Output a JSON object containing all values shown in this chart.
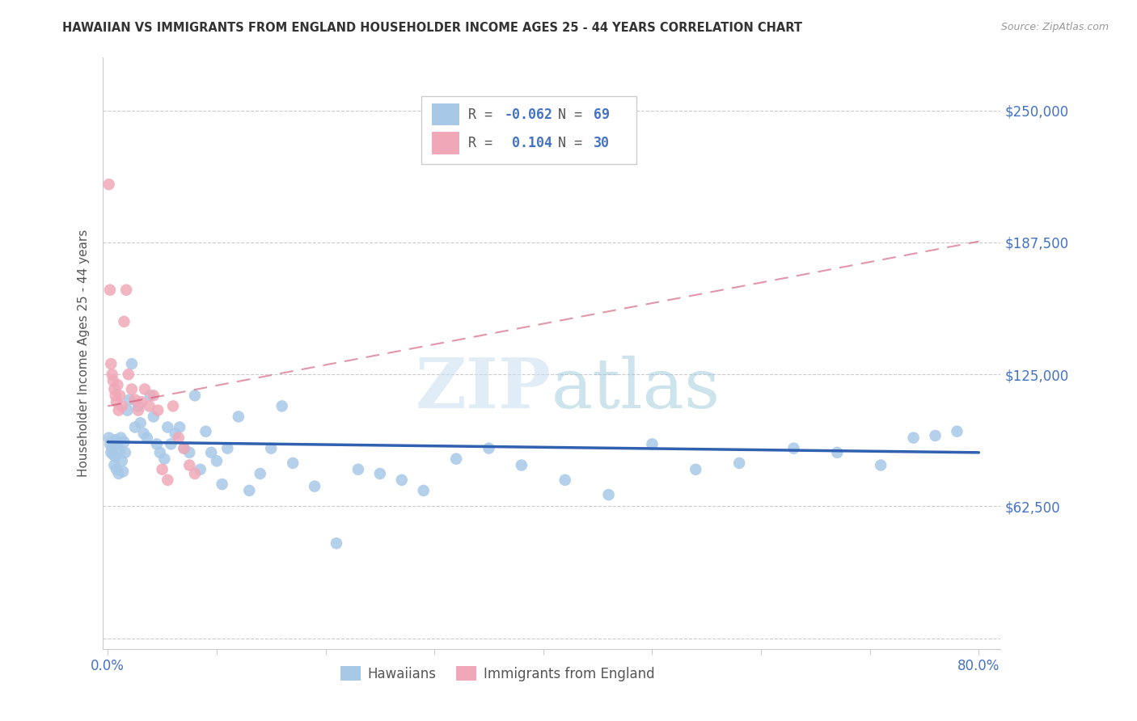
{
  "title": "HAWAIIAN VS IMMIGRANTS FROM ENGLAND HOUSEHOLDER INCOME AGES 25 - 44 YEARS CORRELATION CHART",
  "source": "Source: ZipAtlas.com",
  "ylabel": "Householder Income Ages 25 - 44 years",
  "ytick_vals": [
    0,
    62500,
    125000,
    187500,
    250000
  ],
  "ytick_labels": [
    "",
    "$62,500",
    "$125,000",
    "$187,500",
    "$250,000"
  ],
  "xlim": [
    -0.005,
    0.82
  ],
  "ylim": [
    -5000,
    275000
  ],
  "hawaiians_R": "-0.062",
  "hawaiians_N": "69",
  "england_R": "0.104",
  "england_N": "30",
  "hawaiian_color": "#a8c8e8",
  "england_color": "#f0a8b8",
  "trend_hawaiian_color": "#3060b0",
  "trend_england_color": "#d05070",
  "watermark": "ZIPatlas",
  "hawaiians_x": [
    0.001,
    0.002,
    0.003,
    0.004,
    0.005,
    0.006,
    0.007,
    0.007,
    0.008,
    0.009,
    0.01,
    0.011,
    0.012,
    0.013,
    0.014,
    0.015,
    0.016,
    0.018,
    0.02,
    0.022,
    0.025,
    0.028,
    0.03,
    0.033,
    0.036,
    0.039,
    0.042,
    0.045,
    0.048,
    0.052,
    0.055,
    0.058,
    0.062,
    0.066,
    0.07,
    0.075,
    0.08,
    0.085,
    0.09,
    0.095,
    0.1,
    0.105,
    0.11,
    0.12,
    0.13,
    0.14,
    0.15,
    0.16,
    0.17,
    0.19,
    0.21,
    0.23,
    0.25,
    0.27,
    0.29,
    0.32,
    0.35,
    0.38,
    0.42,
    0.46,
    0.5,
    0.54,
    0.58,
    0.63,
    0.67,
    0.71,
    0.74,
    0.76,
    0.78
  ],
  "hawaiians_y": [
    95000,
    92000,
    88000,
    90000,
    87000,
    82000,
    86000,
    94000,
    80000,
    92000,
    78000,
    89000,
    95000,
    84000,
    79000,
    93000,
    88000,
    108000,
    113000,
    130000,
    100000,
    110000,
    102000,
    97000,
    95000,
    115000,
    105000,
    92000,
    88000,
    85000,
    100000,
    92000,
    97000,
    100000,
    90000,
    88000,
    115000,
    80000,
    98000,
    88000,
    84000,
    73000,
    90000,
    105000,
    70000,
    78000,
    90000,
    110000,
    83000,
    72000,
    45000,
    80000,
    78000,
    75000,
    70000,
    85000,
    90000,
    82000,
    75000,
    68000,
    92000,
    80000,
    83000,
    90000,
    88000,
    82000,
    95000,
    96000,
    98000
  ],
  "england_x": [
    0.001,
    0.002,
    0.003,
    0.004,
    0.005,
    0.006,
    0.007,
    0.008,
    0.009,
    0.01,
    0.011,
    0.013,
    0.015,
    0.017,
    0.019,
    0.022,
    0.025,
    0.028,
    0.031,
    0.034,
    0.038,
    0.042,
    0.046,
    0.05,
    0.055,
    0.06,
    0.065,
    0.07,
    0.075,
    0.08
  ],
  "england_y": [
    215000,
    165000,
    130000,
    125000,
    122000,
    118000,
    115000,
    112000,
    120000,
    108000,
    115000,
    110000,
    150000,
    165000,
    125000,
    118000,
    113000,
    108000,
    112000,
    118000,
    110000,
    115000,
    108000,
    80000,
    75000,
    110000,
    95000,
    90000,
    82000,
    78000
  ],
  "trend_haw_x0": 0.0,
  "trend_haw_y0": 93000,
  "trend_haw_x1": 0.8,
  "trend_haw_y1": 88000,
  "trend_eng_x0": 0.0,
  "trend_eng_y0": 110000,
  "trend_eng_x1": 0.8,
  "trend_eng_y1": 188000,
  "legend_R1": "R = -0.062",
  "legend_N1": "N = 69",
  "legend_R2": "R =  0.104",
  "legend_N2": "N = 30"
}
